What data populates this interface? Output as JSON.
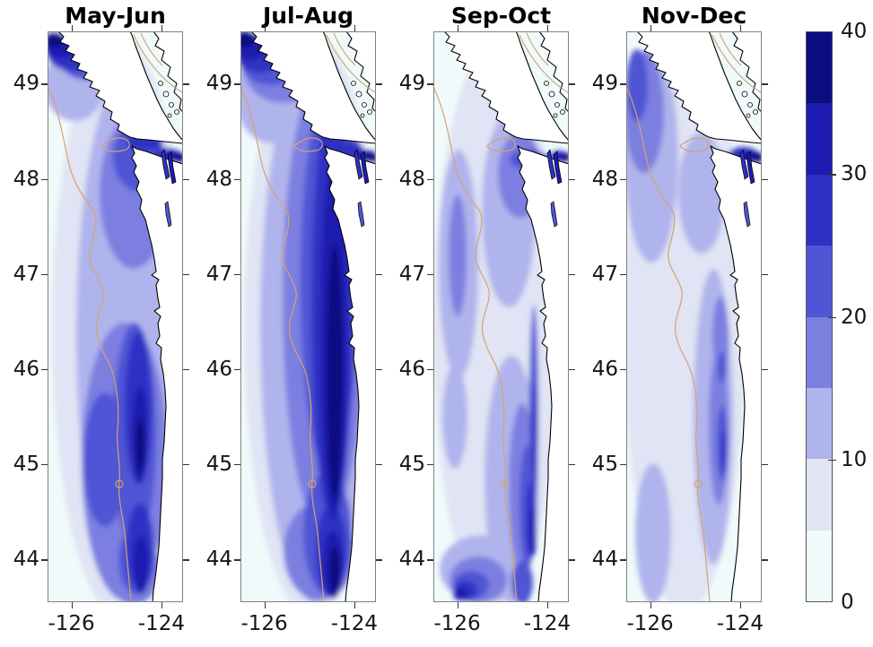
{
  "figure": {
    "kind": "small-multiple coastal heatmap figure",
    "background": "#ffffff",
    "region": "Pacific Northwest coast: Vancouver Island, Strait of Juan de Fuca, Washington and Oregon shelf"
  },
  "chart_data": {
    "type": "heatmap",
    "subtype": "filled-contour map, four seasonal panels sharing one colorbar",
    "panels": [
      {
        "id": "may-jun",
        "title": "May-Jun",
        "summary": "High values (25-40) in a nearshore band along the WA/OR coast and in the northwest corner off Vancouver Island; moderate (10-20) offshore plume in the south; palest (0-10) far offshore west; dark wedge (30-40) at the east end of the Strait of Juan de Fuca.",
        "blobs": [
          [
            80,
            330,
            75,
            322,
            1
          ],
          [
            90,
            340,
            58,
            295,
            2
          ],
          [
            30,
            60,
            34,
            40,
            2
          ],
          [
            96,
            180,
            38,
            85,
            3
          ],
          [
            86,
            480,
            48,
            155,
            3
          ],
          [
            58,
            28,
            40,
            26,
            3
          ],
          [
            96,
            600,
            30,
            40,
            3
          ],
          [
            101,
            140,
            28,
            38,
            4
          ],
          [
            97,
            450,
            24,
            125,
            4
          ],
          [
            64,
            478,
            24,
            75,
            4
          ],
          [
            44,
            32,
            30,
            22,
            4
          ],
          [
            99,
            590,
            20,
            38,
            4
          ],
          [
            27,
            26,
            26,
            18,
            5
          ],
          [
            101,
            420,
            15,
            85,
            5
          ],
          [
            103,
            575,
            15,
            48,
            5
          ],
          [
            108,
            124,
            20,
            9,
            5
          ],
          [
            133,
            138,
            15,
            8,
            5
          ],
          [
            15,
            18,
            18,
            12,
            6
          ],
          [
            103,
            450,
            9,
            55,
            6
          ],
          [
            104,
            595,
            9,
            33,
            6
          ],
          [
            142,
            140,
            10,
            6,
            6
          ],
          [
            7,
            10,
            10,
            8,
            7
          ],
          [
            103,
            462,
            5,
            32,
            7
          ],
          [
            147,
            141,
            7,
            5,
            7
          ]
        ]
      },
      {
        "id": "jul-aug",
        "title": "Jul-Aug",
        "summary": "Strongest season: wide very dark band (30-40) hugging the coast from Vancouver Island to southern Oregon, straddling the shelf-break isobath; moderate (10-20) offshore; dark strait wedge.",
        "blobs": [
          [
            80,
            330,
            76,
            325,
            1
          ],
          [
            84,
            330,
            62,
            308,
            2
          ],
          [
            34,
            70,
            40,
            55,
            2
          ],
          [
            93,
            300,
            46,
            255,
            3
          ],
          [
            48,
            42,
            44,
            38,
            3
          ],
          [
            88,
            580,
            40,
            55,
            3
          ],
          [
            99,
            280,
            32,
            215,
            4
          ],
          [
            34,
            33,
            34,
            27,
            4
          ],
          [
            97,
            560,
            27,
            68,
            4
          ],
          [
            106,
            127,
            28,
            12,
            4
          ],
          [
            102,
            310,
            23,
            235,
            5
          ],
          [
            21,
            26,
            25,
            20,
            5
          ],
          [
            101,
            580,
            17,
            52,
            5
          ],
          [
            118,
            133,
            20,
            9,
            5
          ],
          [
            104,
            340,
            15,
            205,
            6
          ],
          [
            11,
            18,
            17,
            14,
            6
          ],
          [
            103,
            595,
            11,
            38,
            6
          ],
          [
            139,
            139,
            12,
            7,
            6
          ],
          [
            105,
            380,
            9,
            145,
            7
          ],
          [
            105,
            602,
            6,
            28,
            7
          ],
          [
            5,
            9,
            10,
            9,
            7
          ],
          [
            146,
            141,
            7,
            5,
            7
          ]
        ]
      },
      {
        "id": "sep-oct",
        "title": "Sep-Oct",
        "summary": "Much weaker: mostly 0-15 with patchy 10-20; narrow dark strip (20-30) right along the coast, a 25-35 blob in the far south, moderate band at the strait entrance; dark strait wedge.",
        "blobs": [
          [
            70,
            330,
            70,
            318,
            1
          ],
          [
            28,
            260,
            22,
            128,
            2
          ],
          [
            84,
            200,
            30,
            108,
            2
          ],
          [
            87,
            500,
            30,
            138,
            2
          ],
          [
            55,
            600,
            48,
            38,
            2
          ],
          [
            24,
            430,
            14,
            58,
            2
          ],
          [
            97,
            160,
            25,
            48,
            3
          ],
          [
            99,
            510,
            15,
            95,
            3
          ],
          [
            50,
            612,
            32,
            26,
            3
          ],
          [
            27,
            250,
            10,
            68,
            3
          ],
          [
            106,
            143,
            21,
            11,
            4
          ],
          [
            105,
            530,
            9,
            68,
            4
          ],
          [
            42,
            618,
            20,
            16,
            4
          ],
          [
            99,
            615,
            12,
            24,
            4
          ],
          [
            112,
            420,
            5,
            115,
            4
          ],
          [
            117,
            144,
            15,
            8,
            5
          ],
          [
            109,
            545,
            6,
            42,
            5
          ],
          [
            36,
            624,
            13,
            11,
            5
          ],
          [
            113,
            450,
            3,
            58,
            5
          ],
          [
            140,
            139,
            9,
            6,
            5
          ],
          [
            111,
            560,
            4,
            26,
            6
          ],
          [
            30,
            628,
            8,
            7,
            6
          ],
          [
            145,
            140,
            8,
            5,
            6
          ],
          [
            148,
            141,
            5,
            4,
            7
          ]
        ]
      },
      {
        "id": "nov-dec",
        "title": "Nov-Dec",
        "summary": "Weakest season: almost all 0-10, light (10-15) patches in the northwest corner and in a thin coastal strip; small 15-25 spots nearshore; dark navy wedge persists in the eastern strait.",
        "blobs": [
          [
            65,
            330,
            68,
            318,
            1
          ],
          [
            28,
            140,
            30,
            118,
            2
          ],
          [
            97,
            430,
            22,
            165,
            2
          ],
          [
            84,
            180,
            26,
            68,
            2
          ],
          [
            30,
            560,
            20,
            78,
            2
          ],
          [
            20,
            90,
            22,
            68,
            3
          ],
          [
            103,
            440,
            11,
            88,
            3
          ],
          [
            105,
            340,
            9,
            44,
            3
          ],
          [
            12,
            60,
            12,
            40,
            4
          ],
          [
            107,
            460,
            6,
            42,
            4
          ],
          [
            107,
            375,
            5,
            17,
            4
          ],
          [
            130,
            137,
            16,
            8,
            5
          ],
          [
            109,
            470,
            3,
            24,
            5
          ],
          [
            140,
            139,
            11,
            6,
            6
          ],
          [
            146,
            141,
            7,
            5,
            7
          ]
        ]
      }
    ],
    "x_axis": {
      "tick_labels": [
        "-126",
        "-124"
      ],
      "tick_lons": [
        -126,
        -124
      ],
      "lon_range": [
        -126.53,
        -123.52
      ]
    },
    "y_axis": {
      "tick_labels": [
        "49",
        "48",
        "47",
        "46",
        "45",
        "44"
      ],
      "tick_lats": [
        49,
        48,
        47,
        46,
        45,
        44
      ],
      "lat_range": [
        43.55,
        49.55
      ]
    },
    "colorbar": {
      "min": 0,
      "max": 40,
      "tick_labels": [
        "0",
        "10",
        "20",
        "30",
        "40"
      ],
      "tick_values": [
        0,
        10,
        20,
        30,
        40
      ],
      "n_levels": 8,
      "level_edges": [
        0,
        5,
        10,
        15,
        20,
        25,
        30,
        35,
        40
      ],
      "level_colors": [
        "#f0fafa",
        "#e0e4f4",
        "#b0b4ec",
        "#7b7fe0",
        "#5055d5",
        "#2e31c4",
        "#1c1cb0",
        "#0c0c81"
      ]
    },
    "map_features": {
      "land_color": "#ffffff",
      "coastline_color": "#000000",
      "isobath_color": "#d4a273",
      "frame_color": "#808080",
      "grid": false,
      "legend_position": "right colorbar"
    }
  }
}
